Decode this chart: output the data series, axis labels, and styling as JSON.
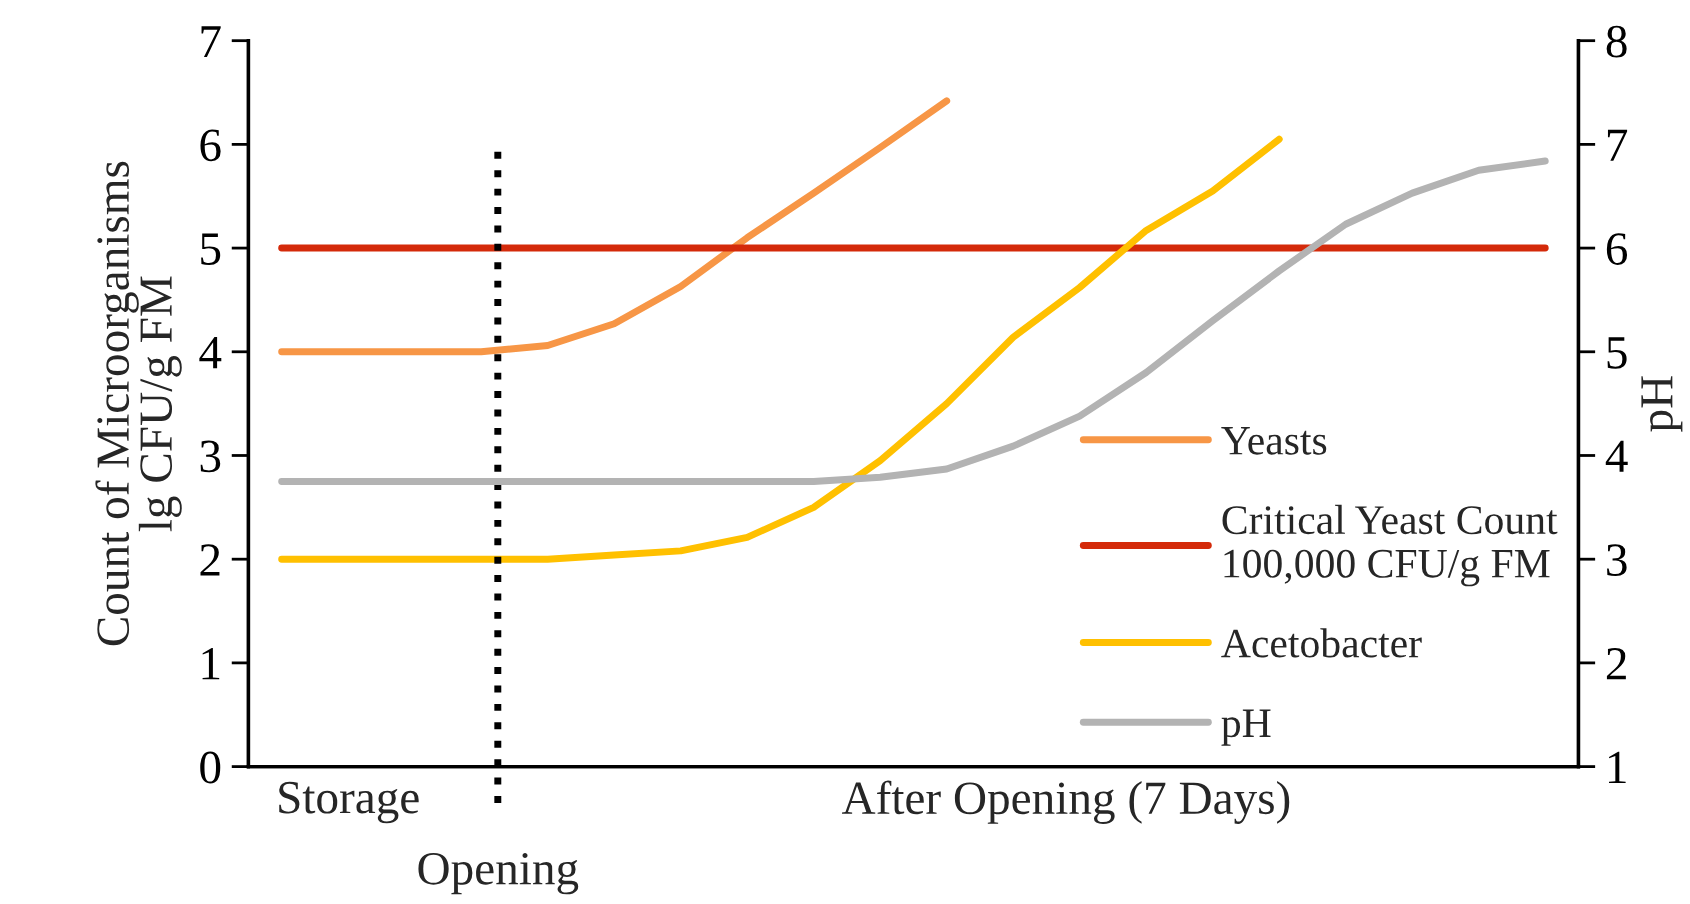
{
  "chart_data": {
    "type": "line",
    "categories": [
      null,
      null,
      null,
      null,
      null,
      null,
      null,
      null,
      null,
      null,
      null,
      null,
      null,
      null,
      null,
      null,
      null,
      null,
      null,
      null
    ],
    "series": [
      {
        "name": "Yeasts",
        "color": "#f79646",
        "values": [
          4,
          4,
          4,
          4,
          4.06,
          4.27,
          4.63,
          5.1,
          5.53,
          5.97,
          6.42,
          null,
          null,
          null,
          null,
          null,
          null,
          null,
          null,
          null
        ]
      },
      {
        "name": "Critical Yeast Count\n100,000 CFU/g FM",
        "color": "#d42a0a",
        "values": [
          5,
          5,
          5,
          5,
          5,
          5,
          5,
          5,
          5,
          5,
          5,
          5,
          5,
          5,
          5,
          5,
          5,
          5,
          5,
          5
        ]
      },
      {
        "name": "Acetobacter",
        "color": "#ffc000",
        "values": [
          2,
          2,
          2,
          2,
          2,
          2.04,
          2.08,
          2.21,
          2.5,
          2.95,
          3.5,
          4.14,
          4.62,
          5.17,
          5.55,
          6.05,
          null,
          null,
          null,
          null
        ]
      },
      {
        "name": "pH",
        "color": "#b3b3b3",
        "axis": "y2",
        "values": [
          3.75,
          3.75,
          3.75,
          3.75,
          3.75,
          3.75,
          3.75,
          3.75,
          3.75,
          3.79,
          3.87,
          4.09,
          4.38,
          4.8,
          5.3,
          5.78,
          6.23,
          6.53,
          6.75,
          6.84
        ]
      }
    ],
    "ylabel": "Count of Microorganisms\nlg CFU/g FM",
    "y2label": "pH",
    "ylim": [
      0,
      7
    ],
    "yticks": [
      0,
      1,
      2,
      3,
      4,
      5,
      6,
      7
    ],
    "y2lim": [
      1,
      8
    ],
    "y2ticks": [
      1,
      2,
      3,
      4,
      5,
      6,
      7,
      8
    ],
    "annotations": [
      "Storage",
      "Opening",
      "After Opening (7 Days)"
    ],
    "tick_labels": "y",
    "grid": false,
    "legend": "right",
    "marker": "none",
    "line_style": "solid"
  }
}
